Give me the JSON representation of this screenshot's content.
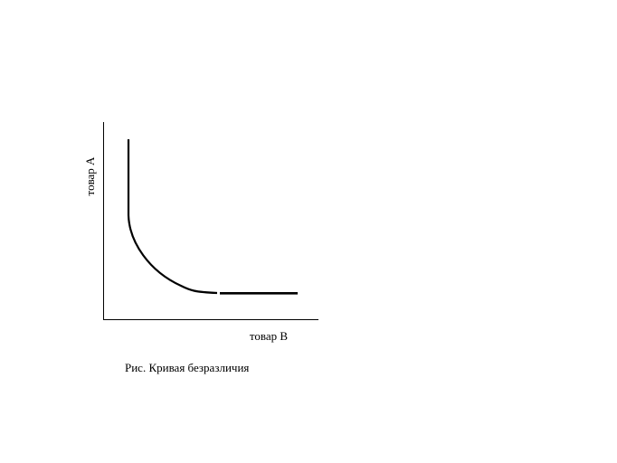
{
  "diagram": {
    "y_axis_label": "товар A",
    "x_axis_label": "товар B",
    "caption": "Рис. Кривая безразличия"
  }
}
